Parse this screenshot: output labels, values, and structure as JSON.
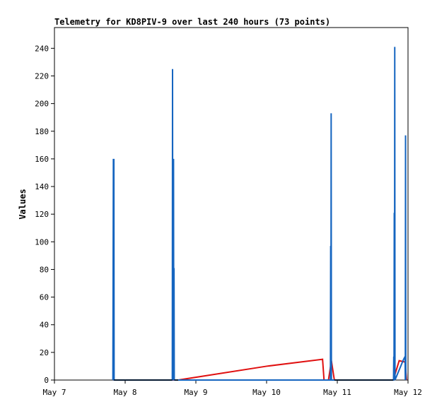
{
  "chart_data": {
    "type": "line",
    "title": "Telemetry for KD8PIV-9 over last 240 hours (73 points)",
    "xlabel": "",
    "ylabel": "Values",
    "xlim": [
      "2015-05-07T00:00",
      "2015-05-12T00:00"
    ],
    "ylim": [
      0,
      255
    ],
    "yticks": [
      0,
      20,
      40,
      60,
      80,
      100,
      120,
      140,
      160,
      180,
      200,
      220,
      240
    ],
    "xticks": [
      {
        "t": "2015-05-07T00:00",
        "label": "May 7"
      },
      {
        "t": "2015-05-08T00:00",
        "label": "May 8"
      },
      {
        "t": "2015-05-09T00:00",
        "label": "May 9"
      },
      {
        "t": "2015-05-10T00:00",
        "label": "May 10"
      },
      {
        "t": "2015-05-11T00:00",
        "label": "May 11"
      },
      {
        "t": "2015-05-12T00:00",
        "label": "May 12"
      }
    ],
    "grid": false,
    "series": [
      {
        "color": "#1565c0",
        "points": [
          {
            "t": "2015-05-07T19:50",
            "v": 0
          },
          {
            "t": "2015-05-07T19:55",
            "v": 81
          },
          {
            "t": "2015-05-07T20:00",
            "v": 160
          },
          {
            "t": "2015-05-07T20:05",
            "v": 0
          },
          {
            "t": "2015-05-07T20:10",
            "v": 160
          },
          {
            "t": "2015-05-07T20:15",
            "v": 0
          },
          {
            "t": "2015-05-08T16:00",
            "v": 0
          },
          {
            "t": "2015-05-08T16:05",
            "v": 225
          },
          {
            "t": "2015-05-08T16:10",
            "v": 0
          },
          {
            "t": "2015-05-08T16:15",
            "v": 112
          },
          {
            "t": "2015-05-08T16:20",
            "v": 0
          },
          {
            "t": "2015-05-08T16:25",
            "v": 160
          },
          {
            "t": "2015-05-08T16:30",
            "v": 0
          },
          {
            "t": "2015-05-08T16:35",
            "v": 81
          },
          {
            "t": "2015-05-08T16:40",
            "v": 0
          },
          {
            "t": "2015-05-10T21:40",
            "v": 0
          },
          {
            "t": "2015-05-10T21:45",
            "v": 97
          },
          {
            "t": "2015-05-10T21:50",
            "v": 0
          },
          {
            "t": "2015-05-10T21:55",
            "v": 193
          },
          {
            "t": "2015-05-10T22:00",
            "v": 0
          },
          {
            "t": "2015-05-11T19:05",
            "v": 0
          },
          {
            "t": "2015-05-11T19:10",
            "v": 17
          },
          {
            "t": "2015-05-11T19:15",
            "v": 0
          },
          {
            "t": "2015-05-11T19:20",
            "v": 121
          },
          {
            "t": "2015-05-11T19:25",
            "v": 0
          },
          {
            "t": "2015-05-11T19:30",
            "v": 241
          },
          {
            "t": "2015-05-11T19:35",
            "v": 0
          },
          {
            "t": "2015-05-11T22:30",
            "v": 15
          },
          {
            "t": "2015-05-11T23:00",
            "v": 17
          },
          {
            "t": "2015-05-11T23:05",
            "v": 0
          },
          {
            "t": "2015-05-11T23:10",
            "v": 177
          },
          {
            "t": "2015-05-11T23:15",
            "v": 0
          }
        ]
      },
      {
        "color": "#e01010",
        "points": [
          {
            "t": "2015-05-07T20:00",
            "v": 0
          },
          {
            "t": "2015-05-08T18:00",
            "v": 0
          },
          {
            "t": "2015-05-10T00:00",
            "v": 10
          },
          {
            "t": "2015-05-10T19:00",
            "v": 15
          },
          {
            "t": "2015-05-10T19:30",
            "v": 0
          },
          {
            "t": "2015-05-10T21:00",
            "v": 0
          },
          {
            "t": "2015-05-10T22:00",
            "v": 14
          },
          {
            "t": "2015-05-10T23:00",
            "v": 0
          },
          {
            "t": "2015-05-11T19:00",
            "v": 0
          },
          {
            "t": "2015-05-11T21:00",
            "v": 14
          },
          {
            "t": "2015-05-11T23:00",
            "v": 13
          },
          {
            "t": "2015-05-11T23:30",
            "v": 0
          }
        ]
      }
    ]
  }
}
